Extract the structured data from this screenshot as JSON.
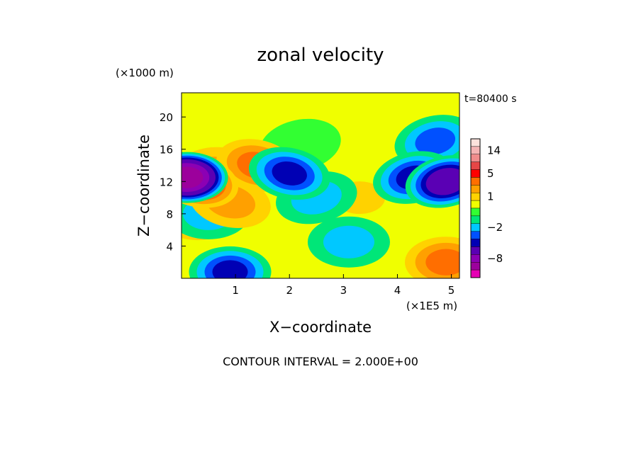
{
  "chart_data": {
    "type": "heatmap",
    "title": "zonal velocity",
    "time_label": "t=80400 s",
    "xlabel": "X−coordinate",
    "ylabel": "Z−coordinate",
    "x_unit": "(×1E5 m)",
    "y_unit": "(×1000 m)",
    "x_range": [
      0,
      5.15
    ],
    "y_range": [
      0,
      23
    ],
    "x_ticks": [
      {
        "value": 1,
        "label": "1"
      },
      {
        "value": 2,
        "label": "2"
      },
      {
        "value": 3,
        "label": "3"
      },
      {
        "value": 4,
        "label": "4"
      },
      {
        "value": 5,
        "label": "5"
      }
    ],
    "y_ticks": [
      {
        "value": 4,
        "label": "4"
      },
      {
        "value": 8,
        "label": "8"
      },
      {
        "value": 12,
        "label": "12"
      },
      {
        "value": 16,
        "label": "16"
      },
      {
        "value": 20,
        "label": "20"
      }
    ],
    "footer": "CONTOUR INTERVAL = 2.000E+00",
    "contour_interval": 2.0,
    "levels": [
      {
        "value": -12,
        "color": "#e600b4"
      },
      {
        "value": -10,
        "color": "#9c009c"
      },
      {
        "value": -8,
        "color": "#8c00b4"
      },
      {
        "value": -6,
        "color": "#5a00b4"
      },
      {
        "value": -4,
        "color": "#0000b4"
      },
      {
        "value": -3,
        "color": "#0050ff"
      },
      {
        "value": -2,
        "color": "#00c8ff"
      },
      {
        "value": -1,
        "color": "#00e678"
      },
      {
        "value": 0,
        "color": "#32ff32"
      },
      {
        "value": 0.5,
        "color": "#f0ff00"
      },
      {
        "value": 1,
        "color": "#ffd200"
      },
      {
        "value": 2,
        "color": "#ffa000"
      },
      {
        "value": 3,
        "color": "#ff6e00"
      },
      {
        "value": 5,
        "color": "#ff0000"
      },
      {
        "value": 8,
        "color": "#e64646"
      },
      {
        "value": 11,
        "color": "#f08c8c"
      },
      {
        "value": 14,
        "color": "#f5b4b4"
      },
      {
        "value": 17,
        "color": "#fde2dc"
      }
    ],
    "colorbar_labels": [
      {
        "value": 14,
        "label": "14"
      },
      {
        "value": 5,
        "label": "5"
      },
      {
        "value": 1,
        "label": "1"
      },
      {
        "value": -2,
        "label": "−2"
      },
      {
        "value": -8,
        "label": "−8"
      }
    ],
    "field_features": [
      {
        "x": 0.1,
        "z": 12.5,
        "value": -10
      },
      {
        "x": 0.15,
        "z": 8.0,
        "value": 2
      },
      {
        "x": 0.3,
        "z": 12.0,
        "value": 5
      },
      {
        "x": 0.5,
        "z": 13.0,
        "value": 2
      },
      {
        "x": 0.5,
        "z": 8.0,
        "value": -2
      },
      {
        "x": 0.9,
        "z": 9.5,
        "value": 2
      },
      {
        "x": 1.4,
        "z": 14.0,
        "value": 3
      },
      {
        "x": 2.0,
        "z": 13.0,
        "value": -4
      },
      {
        "x": 2.5,
        "z": 10.0,
        "value": -2
      },
      {
        "x": 3.1,
        "z": 4.5,
        "value": -2
      },
      {
        "x": 2.2,
        "z": 16.5,
        "value": 0
      },
      {
        "x": 3.3,
        "z": 10.0,
        "value": 1
      },
      {
        "x": 4.3,
        "z": 12.5,
        "value": -4
      },
      {
        "x": 4.9,
        "z": 12.0,
        "value": -6
      },
      {
        "x": 4.7,
        "z": 17.0,
        "value": -3
      },
      {
        "x": 4.9,
        "z": 2.0,
        "value": 3
      },
      {
        "x": 0.9,
        "z": 0.8,
        "value": -4
      }
    ]
  }
}
